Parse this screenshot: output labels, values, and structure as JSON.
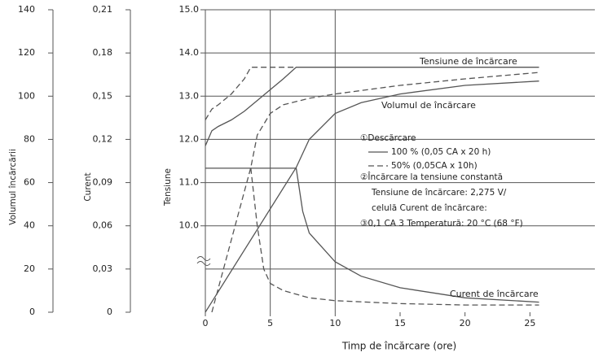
{
  "chart_data": {
    "type": "line",
    "xlabel": "Timp de încărcare (ore)",
    "xlim": [
      0,
      30
    ],
    "xticks": [
      0,
      5,
      10,
      15,
      20,
      25
    ],
    "ylabel": "Volumul încărcării",
    "ylim": [
      0,
      140
    ],
    "yticks": [
      0,
      20,
      40,
      60,
      80,
      100,
      120,
      140
    ],
    "y2label": "Curent",
    "y2lim": [
      0,
      0.21
    ],
    "y2ticks": [
      {
        "value": 0,
        "label": "0"
      },
      {
        "value": 0.03,
        "label": "0,03"
      },
      {
        "value": 0.06,
        "label": "0,06"
      },
      {
        "value": 0.09,
        "label": "0,09"
      },
      {
        "value": 0.12,
        "label": "0,12"
      },
      {
        "value": 0.15,
        "label": "0,15"
      },
      {
        "value": 0.18,
        "label": "0,18"
      },
      {
        "value": 0.21,
        "label": "0,21"
      }
    ],
    "y3label": "Tensiune",
    "y3lim": [
      8,
      15
    ],
    "y3ticks": [
      {
        "value": 10,
        "label": "10.0"
      },
      {
        "value": 11,
        "label": "11.0"
      },
      {
        "value": 12,
        "label": "12.0"
      },
      {
        "value": 13,
        "label": "13.0"
      },
      {
        "value": 14,
        "label": "14.0"
      },
      {
        "value": 15,
        "label": "15.0"
      }
    ],
    "grid": true,
    "color": "#555555",
    "series": [
      {
        "axis": "y3",
        "style": "solid",
        "x": [
          0,
          0.5,
          1,
          2,
          3,
          4,
          5,
          6,
          7,
          10,
          15,
          20,
          25.7
        ],
        "values": [
          11.85,
          12.2,
          12.3,
          12.45,
          12.65,
          12.9,
          13.15,
          13.4,
          13.67,
          13.67,
          13.67,
          13.67,
          13.67
        ]
      },
      {
        "axis": "y3",
        "style": "dashed",
        "x": [
          0,
          0.5,
          1,
          2,
          3,
          3.5,
          5,
          7
        ],
        "values": [
          12.45,
          12.7,
          12.8,
          13.05,
          13.4,
          13.67,
          13.67,
          13.67
        ]
      },
      {
        "axis": "y",
        "style": "solid",
        "x": [
          0,
          7,
          8,
          10,
          12,
          15,
          20,
          25.7
        ],
        "values": [
          0,
          67,
          80,
          92,
          97,
          101,
          105,
          107
        ]
      },
      {
        "axis": "y",
        "style": "dashed",
        "x": [
          0.5,
          3.5,
          4,
          5,
          6,
          8,
          10,
          15,
          20,
          25.7
        ],
        "values": [
          0,
          67,
          82,
          92,
          96,
          99,
          101,
          105,
          108,
          111
        ]
      },
      {
        "axis": "y2",
        "style": "solid",
        "x": [
          0,
          7,
          7.5,
          8,
          10,
          12,
          15,
          20,
          25.7
        ],
        "values": [
          0.1,
          0.1,
          0.07,
          0.055,
          0.035,
          0.025,
          0.017,
          0.01,
          0.007
        ]
      },
      {
        "axis": "y2",
        "style": "dashed",
        "x": [
          3.5,
          4,
          4.5,
          5,
          6,
          8,
          10,
          15,
          20,
          25.7
        ],
        "values": [
          0.1,
          0.06,
          0.03,
          0.02,
          0.015,
          0.01,
          0.008,
          0.006,
          0.005,
          0.005
        ]
      }
    ],
    "annotations": [
      "Tensiune de încărcare",
      "Volumul de încărcare",
      "Curent de încărcare"
    ],
    "notes": [
      "①Descărcare",
      "②Încărcare la tensiune constantă",
      "Tensiune de încărcare: 2,275 V/",
      "celulă Curent de încărcare:",
      "③0,1 CA 3 Temperatură: 20 °C (68 °F)"
    ],
    "legend_items": [
      {
        "label": "100 % (0,05 CA x 20 h)",
        "style": "solid"
      },
      {
        "label": "50% (0,05CA x 10h)",
        "style": "dashed"
      }
    ]
  }
}
